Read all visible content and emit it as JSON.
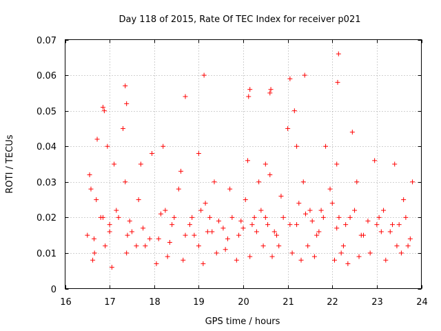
{
  "chart_data": {
    "type": "scatter",
    "title": "Day 118 of 2015, Rate Of TEC Index for receiver p021",
    "xlabel": "GPS time / hours",
    "ylabel": "ROTI / TECUs",
    "xlim": [
      16,
      24
    ],
    "ylim": [
      0,
      0.07
    ],
    "grid": true,
    "x_ticks": [
      16,
      17,
      18,
      19,
      20,
      21,
      22,
      23,
      24
    ],
    "x_tick_labels": [
      "16",
      "17",
      "18",
      "19",
      "20",
      "21",
      "22",
      "23",
      "24"
    ],
    "y_ticks": [
      0,
      0.01,
      0.02,
      0.03,
      0.04,
      0.05,
      0.06,
      0.07
    ],
    "y_tick_labels": [
      "0",
      "0.01",
      "0.02",
      "0.03",
      "0.04",
      "0.05",
      "0.06",
      "0.07"
    ],
    "marker": "plus",
    "series": [
      {
        "name": "ROTI",
        "color": "#ff0000",
        "x": [
          16.5,
          16.58,
          16.66,
          16.72,
          16.8,
          16.9,
          17.0,
          17.1,
          17.2,
          17.35,
          17.5,
          17.65,
          17.8,
          17.95,
          18.1,
          18.25,
          18.4,
          18.55,
          18.7,
          18.85,
          19.0,
          19.15,
          19.3,
          19.45,
          19.6,
          19.75,
          19.9,
          20.05,
          20.2,
          20.35,
          20.5,
          20.6,
          20.7,
          20.8,
          20.9,
          21.05,
          21.2,
          21.35,
          21.5,
          21.65,
          21.8,
          21.95,
          22.1,
          22.25,
          22.4,
          22.55,
          22.7,
          22.85,
          23.0,
          23.15,
          23.3,
          23.45,
          23.6,
          23.75,
          16.62,
          17.05,
          17.38,
          17.6,
          18.05,
          18.3,
          18.65,
          19.1,
          19.4,
          19.85,
          20.15,
          20.45,
          20.65,
          21.1,
          21.3,
          21.45,
          21.6,
          22.05,
          22.2,
          22.35,
          22.6,
          23.2,
          23.55,
          23.7,
          16.7,
          16.85,
          17.15,
          17.45,
          17.75,
          18.15,
          18.45,
          18.8,
          19.05,
          19.25,
          19.55,
          19.95,
          20.25,
          20.4,
          20.55,
          20.85,
          21.25,
          21.4,
          21.55,
          21.75,
          22.0,
          22.15,
          22.3,
          22.5,
          22.8,
          23.05,
          23.35,
          23.65,
          16.55,
          16.95,
          17.3,
          17.7,
          18.2,
          18.6,
          19.0,
          19.35,
          19.7,
          20.1,
          20.5,
          21.0,
          21.15,
          21.85,
          22.45,
          22.95,
          23.4,
          23.8,
          16.65,
          17.0,
          17.4,
          17.9,
          18.35,
          18.9,
          19.2,
          19.65,
          20.0,
          20.3,
          20.75,
          21.2,
          21.7,
          22.1,
          22.65,
          23.1,
          23.5,
          20.12,
          20.15,
          19.12,
          21.38,
          22.12,
          22.14,
          17.35,
          17.38,
          16.85,
          16.88,
          20.6,
          20.62,
          18.7,
          21.05
        ],
        "y": [
          0.015,
          0.028,
          0.01,
          0.042,
          0.02,
          0.012,
          0.018,
          0.035,
          0.02,
          0.03,
          0.016,
          0.025,
          0.012,
          0.038,
          0.014,
          0.022,
          0.018,
          0.028,
          0.015,
          0.02,
          0.012,
          0.024,
          0.016,
          0.019,
          0.011,
          0.02,
          0.015,
          0.025,
          0.018,
          0.03,
          0.02,
          0.032,
          0.016,
          0.012,
          0.02,
          0.018,
          0.04,
          0.03,
          0.022,
          0.015,
          0.02,
          0.028,
          0.035,
          0.012,
          0.02,
          0.03,
          0.015,
          0.01,
          0.018,
          0.022,
          0.016,
          0.012,
          0.025,
          0.014,
          0.008,
          0.006,
          0.01,
          0.012,
          0.007,
          0.009,
          0.008,
          0.007,
          0.01,
          0.008,
          0.009,
          0.012,
          0.009,
          0.01,
          0.008,
          0.012,
          0.009,
          0.008,
          0.01,
          0.007,
          0.009,
          0.008,
          0.01,
          0.012,
          0.025,
          0.02,
          0.022,
          0.019,
          0.017,
          0.021,
          0.02,
          0.018,
          0.022,
          0.02,
          0.017,
          0.019,
          0.02,
          0.022,
          0.018,
          0.026,
          0.024,
          0.021,
          0.019,
          0.022,
          0.024,
          0.02,
          0.018,
          0.022,
          0.019,
          0.02,
          0.018,
          0.02,
          0.032,
          0.04,
          0.045,
          0.035,
          0.04,
          0.033,
          0.038,
          0.03,
          0.028,
          0.036,
          0.035,
          0.045,
          0.05,
          0.04,
          0.044,
          0.036,
          0.035,
          0.03,
          0.014,
          0.016,
          0.015,
          0.014,
          0.013,
          0.015,
          0.016,
          0.014,
          0.017,
          0.016,
          0.015,
          0.018,
          0.016,
          0.017,
          0.015,
          0.016,
          0.018,
          0.054,
          0.056,
          0.06,
          0.06,
          0.058,
          0.066,
          0.057,
          0.052,
          0.051,
          0.05,
          0.055,
          0.056,
          0.054,
          0.059
        ]
      }
    ]
  }
}
